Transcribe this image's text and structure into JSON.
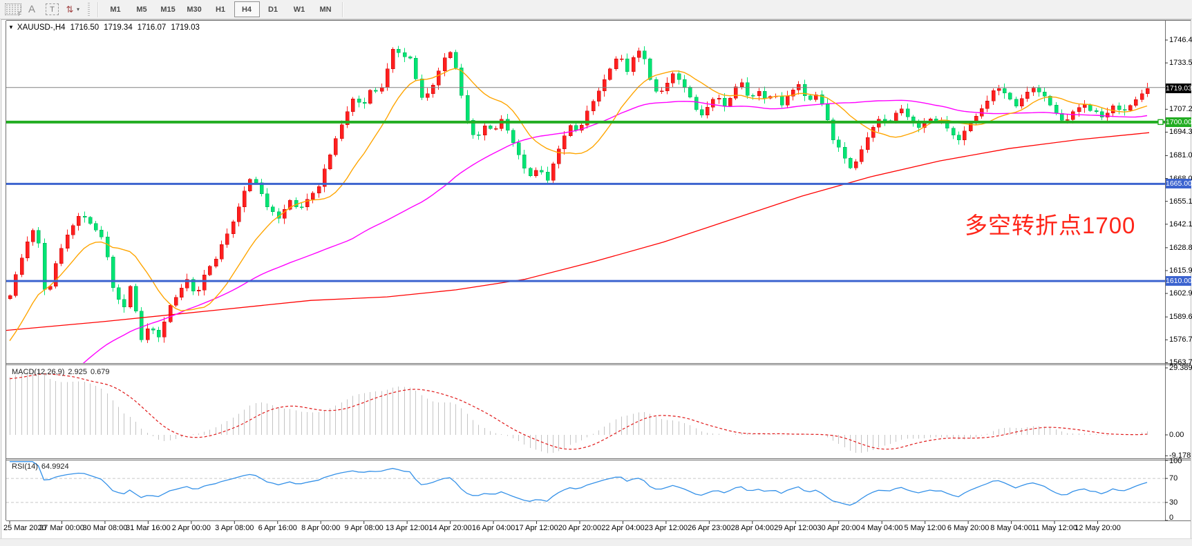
{
  "toolbar": {
    "tools": [
      {
        "id": "template-grid",
        "glyph": "F"
      },
      {
        "id": "text-label",
        "glyph": "A"
      },
      {
        "id": "text-box",
        "glyph": "T"
      },
      {
        "id": "arrow-tools",
        "glyph": "⇅",
        "caret": "▾"
      }
    ],
    "timeframes": [
      "M1",
      "M5",
      "M15",
      "M30",
      "H1",
      "H4",
      "D1",
      "W1",
      "MN"
    ],
    "active_timeframe": "H4"
  },
  "symbol_bar": {
    "dropdown_glyph": "▼",
    "symbol": "XAUUSD-,H4",
    "open": "1716.50",
    "high": "1719.34",
    "low": "1716.07",
    "close": "1719.03"
  },
  "annotation": {
    "text": "多空转折点1700",
    "color": "#ff2519"
  },
  "price_scale": {
    "ticks": [
      "1746.45",
      "1733.50",
      "1707.25",
      "1694.30",
      "1681.00",
      "1668.05",
      "1655.10",
      "1642.15",
      "1628.85",
      "1615.90",
      "1602.95",
      "1589.65",
      "1576.70",
      "1563.75"
    ],
    "boxes": [
      {
        "label": "1719.03",
        "price": 1719.03,
        "bg": "#000000",
        "fg": "#ffffff",
        "name": "current-price-label"
      },
      {
        "label": "1700.00",
        "price": 1700,
        "bg": "#22ad22",
        "fg": "#ffffff",
        "name": "level-1700-label"
      },
      {
        "label": "1665.00",
        "price": 1665,
        "bg": "#3b63cf",
        "fg": "#ffffff",
        "name": "level-1665-label"
      },
      {
        "label": "1610.00",
        "price": 1610,
        "bg": "#3b63cf",
        "fg": "#ffffff",
        "name": "level-1610-label"
      }
    ]
  },
  "indicators": {
    "macd": {
      "title": "MACD(12,26,9)",
      "value_main": "2.925",
      "value_signal": "0.679",
      "scale": [
        "29.389",
        "0.00",
        "-9.178"
      ]
    },
    "rsi": {
      "title": "RSI(14)",
      "value": "64.9924",
      "scale": [
        "100",
        "70",
        "30",
        "0"
      ],
      "levels": [
        70,
        30
      ]
    }
  },
  "chart_data": {
    "type": "candlestick",
    "symbol": "XAUUSD",
    "period": "H4",
    "ohlc_display": {
      "open": 1716.5,
      "high": 1719.34,
      "low": 1716.07,
      "close": 1719.03
    },
    "price_axis": {
      "visible_min": 1563.9,
      "visible_max": 1757.4
    },
    "x_labels": [
      "25 Mar 2020",
      "27 Mar 00:00",
      "30 Mar 08:00",
      "31 Mar 16:00",
      "2 Apr 00:00",
      "3 Apr 08:00",
      "6 Apr 16:00",
      "8 Apr 00:00",
      "9 Apr 08:00",
      "13 Apr 12:00",
      "14 Apr 20:00",
      "16 Apr 04:00",
      "17 Apr 12:00",
      "20 Apr 20:00",
      "22 Apr 04:00",
      "23 Apr 12:00",
      "26 Apr 23:00",
      "28 Apr 04:00",
      "29 Apr 12:00",
      "30 Apr 20:00",
      "4 May 04:00",
      "5 May 12:00",
      "6 May 20:00",
      "8 May 04:00",
      "11 May 12:00",
      "12 May 20:00"
    ],
    "horizontal_lines": [
      {
        "name": "price-line-gray",
        "price": 1719.6,
        "color": "#808080",
        "width": 1
      },
      {
        "name": "hline-1700",
        "price": 1700,
        "color": "#22ad22",
        "width": 4,
        "selected": true
      },
      {
        "name": "hline-1665",
        "price": 1665,
        "color": "#3b63cf",
        "width": 3
      },
      {
        "name": "hline-1610",
        "price": 1610,
        "color": "#3b63cf",
        "width": 3
      }
    ],
    "close_path": [
      [
        14,
        1603
      ],
      [
        40,
        1633
      ],
      [
        52,
        1642
      ],
      [
        66,
        1598
      ],
      [
        84,
        1627
      ],
      [
        100,
        1637
      ],
      [
        116,
        1648
      ],
      [
        136,
        1640
      ],
      [
        150,
        1634
      ],
      [
        166,
        1601
      ],
      [
        180,
        1594
      ],
      [
        190,
        1610
      ],
      [
        202,
        1575
      ],
      [
        216,
        1586
      ],
      [
        228,
        1578
      ],
      [
        242,
        1593
      ],
      [
        256,
        1601
      ],
      [
        270,
        1611
      ],
      [
        283,
        1601
      ],
      [
        297,
        1616
      ],
      [
        311,
        1623
      ],
      [
        325,
        1633
      ],
      [
        339,
        1645
      ],
      [
        352,
        1660
      ],
      [
        364,
        1670
      ],
      [
        376,
        1662
      ],
      [
        390,
        1650
      ],
      [
        404,
        1644
      ],
      [
        418,
        1656
      ],
      [
        432,
        1650
      ],
      [
        446,
        1658
      ],
      [
        460,
        1664
      ],
      [
        474,
        1677
      ],
      [
        488,
        1693
      ],
      [
        500,
        1704
      ],
      [
        512,
        1715
      ],
      [
        524,
        1709
      ],
      [
        536,
        1720
      ],
      [
        548,
        1714
      ],
      [
        558,
        1727
      ],
      [
        566,
        1738
      ],
      [
        572,
        1746
      ],
      [
        580,
        1734
      ],
      [
        590,
        1741
      ],
      [
        600,
        1727
      ],
      [
        612,
        1712
      ],
      [
        624,
        1718
      ],
      [
        636,
        1730
      ],
      [
        648,
        1741
      ],
      [
        656,
        1737
      ],
      [
        666,
        1718
      ],
      [
        678,
        1698
      ],
      [
        690,
        1690
      ],
      [
        702,
        1698
      ],
      [
        714,
        1694
      ],
      [
        726,
        1702
      ],
      [
        738,
        1692
      ],
      [
        752,
        1681
      ],
      [
        766,
        1668
      ],
      [
        780,
        1674
      ],
      [
        790,
        1665
      ],
      [
        802,
        1679
      ],
      [
        814,
        1691
      ],
      [
        826,
        1700
      ],
      [
        838,
        1694
      ],
      [
        850,
        1706
      ],
      [
        862,
        1714
      ],
      [
        874,
        1724
      ],
      [
        886,
        1733
      ],
      [
        896,
        1740
      ],
      [
        906,
        1729
      ],
      [
        918,
        1737
      ],
      [
        928,
        1741
      ],
      [
        940,
        1724
      ],
      [
        952,
        1715
      ],
      [
        964,
        1722
      ],
      [
        976,
        1730
      ],
      [
        988,
        1720
      ],
      [
        1000,
        1712
      ],
      [
        1012,
        1702
      ],
      [
        1024,
        1709
      ],
      [
        1036,
        1716
      ],
      [
        1048,
        1710
      ],
      [
        1060,
        1717
      ],
      [
        1072,
        1722
      ],
      [
        1084,
        1712
      ],
      [
        1096,
        1718
      ],
      [
        1108,
        1713
      ],
      [
        1120,
        1717
      ],
      [
        1132,
        1710
      ],
      [
        1144,
        1716
      ],
      [
        1156,
        1721
      ],
      [
        1168,
        1711
      ],
      [
        1180,
        1716
      ],
      [
        1192,
        1709
      ],
      [
        1204,
        1692
      ],
      [
        1218,
        1681
      ],
      [
        1232,
        1672
      ],
      [
        1246,
        1684
      ],
      [
        1260,
        1696
      ],
      [
        1274,
        1704
      ],
      [
        1288,
        1699
      ],
      [
        1302,
        1708
      ],
      [
        1316,
        1701
      ],
      [
        1330,
        1697
      ],
      [
        1344,
        1703
      ],
      [
        1358,
        1701
      ],
      [
        1372,
        1695
      ],
      [
        1386,
        1689
      ],
      [
        1400,
        1698
      ],
      [
        1414,
        1705
      ],
      [
        1428,
        1713
      ],
      [
        1442,
        1719
      ],
      [
        1456,
        1715
      ],
      [
        1470,
        1709
      ],
      [
        1484,
        1717
      ],
      [
        1498,
        1721
      ],
      [
        1512,
        1713
      ],
      [
        1526,
        1705
      ],
      [
        1540,
        1699
      ],
      [
        1554,
        1707
      ],
      [
        1568,
        1711
      ],
      [
        1582,
        1706
      ],
      [
        1596,
        1701
      ],
      [
        1610,
        1709
      ],
      [
        1624,
        1706
      ],
      [
        1638,
        1711
      ],
      [
        1650,
        1717
      ],
      [
        1662,
        1719
      ]
    ],
    "ma_slow_path": [
      [
        8,
        1582
      ],
      [
        150,
        1587
      ],
      [
        300,
        1593
      ],
      [
        450,
        1599
      ],
      [
        560,
        1601
      ],
      [
        660,
        1605
      ],
      [
        760,
        1611
      ],
      [
        860,
        1621
      ],
      [
        960,
        1632
      ],
      [
        1060,
        1645
      ],
      [
        1160,
        1658
      ],
      [
        1260,
        1669
      ],
      [
        1360,
        1678
      ],
      [
        1460,
        1685
      ],
      [
        1560,
        1690
      ],
      [
        1663,
        1694
      ]
    ],
    "colors": {
      "up": "#ff1f1f",
      "up_border": "#c40000",
      "down": "#00e473",
      "down_border": "#00a855",
      "ma_fast": "#ffa500",
      "ma_mid": "#ff00ff",
      "ma_slow": "#ff0000",
      "macd_hist": "#c4c4c4",
      "macd_signal": "#e01818",
      "rsi_line": "#3390e8",
      "rsi_level": "#c8c8c8"
    }
  }
}
